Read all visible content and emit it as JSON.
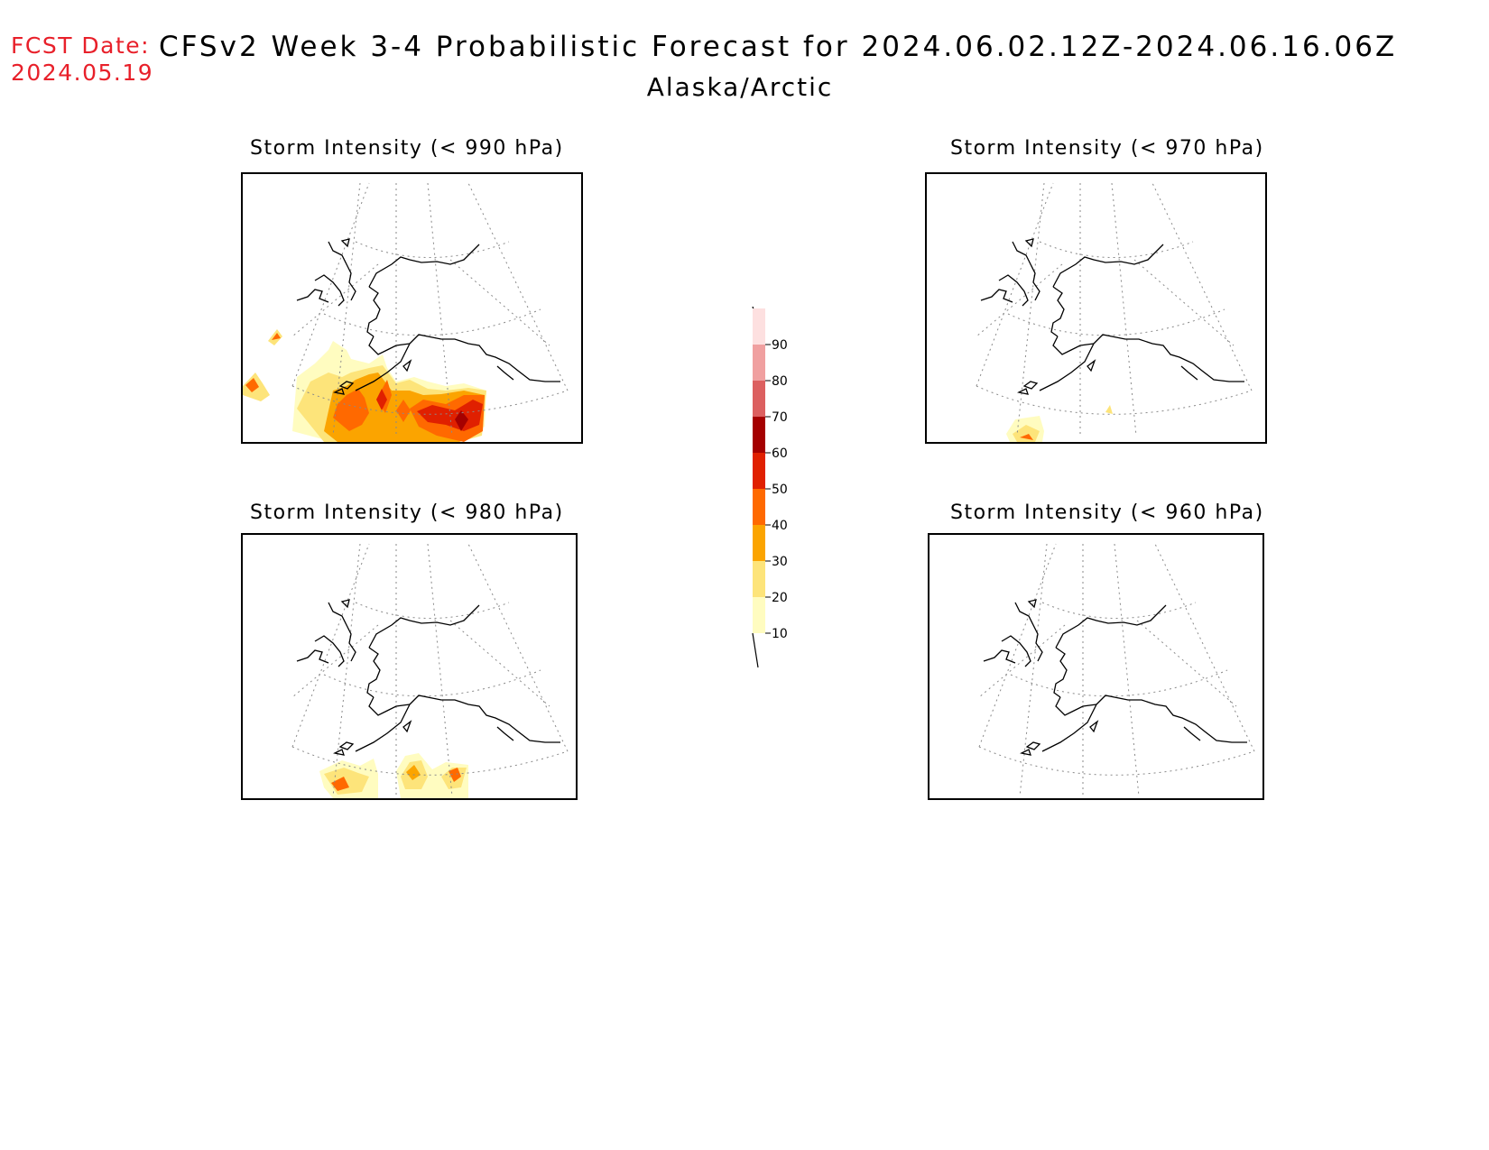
{
  "header": {
    "fcst_label": "FCST Date:",
    "fcst_date": "2024.05.19",
    "title": "CFSv2 Week 3-4 Probabilistic Forecast for 2024.06.02.12Z-2024.06.16.06Z",
    "region": "Alaska/Arctic"
  },
  "panels": [
    {
      "title": "Storm Intensity (< 990 hPa)"
    },
    {
      "title": "Storm Intensity (< 970 hPa)"
    },
    {
      "title": "Storm Intensity (< 980 hPa)"
    },
    {
      "title": "Storm Intensity (< 960 hPa)"
    }
  ],
  "colorbar": {
    "levels": [
      "10",
      "20",
      "30",
      "40",
      "50",
      "60",
      "70",
      "80",
      "90"
    ],
    "colors": [
      "#fffcc0",
      "#fde47a",
      "#fba400",
      "#ff6900",
      "#e02000",
      "#a50000",
      "#dc6060",
      "#f0a0a0",
      "#fde0e0"
    ]
  }
}
